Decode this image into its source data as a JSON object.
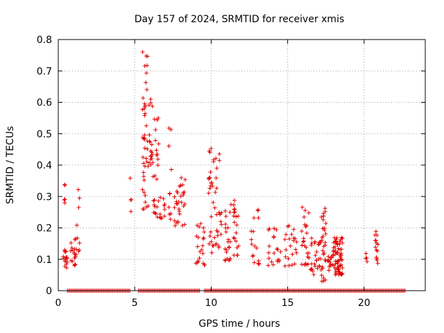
{
  "chart_data": {
    "type": "scatter",
    "title": "Day 157 of 2024, SRMTID for receiver xmis",
    "xlabel": "GPS time / hours",
    "ylabel": "SRMTID / TECUs",
    "xlim": [
      0,
      24
    ],
    "ylim": [
      0,
      0.8
    ],
    "xticks": [
      0,
      5,
      10,
      15,
      20
    ],
    "yticks": [
      0,
      0.1,
      0.2,
      0.3,
      0.4,
      0.5,
      0.6,
      0.7,
      0.8
    ],
    "xtick_labels": [
      "0",
      "5",
      "10",
      "15",
      "20"
    ],
    "ytick_labels": [
      "0",
      "0.1",
      "0.2",
      "0.3",
      "0.4",
      "0.5",
      "0.6",
      "0.7",
      "0.8"
    ],
    "grid": true,
    "marker": "+",
    "series_color": "#e00000",
    "zero_baseline": {
      "x_start": 0.6,
      "x_end": 22.7,
      "step": 0.08,
      "gaps": [
        [
          4.7,
          5.2
        ],
        [
          9.3,
          9.5
        ]
      ]
    },
    "clusters": [
      {
        "x": [
          0.3,
          0.6
        ],
        "y": [
          0.07,
          0.13
        ],
        "n": 16
      },
      {
        "x": [
          0.35,
          0.45
        ],
        "y": [
          0.27,
          0.36
        ],
        "n": 5
      },
      {
        "x": [
          0.8,
          1.2
        ],
        "y": [
          0.08,
          0.18
        ],
        "n": 18
      },
      {
        "x": [
          1.2,
          1.4
        ],
        "y": [
          0.1,
          0.33
        ],
        "n": 8
      },
      {
        "x": [
          4.7,
          4.8
        ],
        "y": [
          0.23,
          0.39
        ],
        "n": 4
      },
      {
        "x": [
          5.5,
          5.9
        ],
        "y": [
          0.26,
          0.77
        ],
        "n": 42
      },
      {
        "x": [
          5.9,
          6.2
        ],
        "y": [
          0.4,
          0.7
        ],
        "n": 18
      },
      {
        "x": [
          6.2,
          6.6
        ],
        "y": [
          0.22,
          0.56
        ],
        "n": 24
      },
      {
        "x": [
          6.6,
          7.0
        ],
        "y": [
          0.23,
          0.3
        ],
        "n": 10
      },
      {
        "x": [
          7.2,
          7.4
        ],
        "y": [
          0.22,
          0.53
        ],
        "n": 10
      },
      {
        "x": [
          7.6,
          8.3
        ],
        "y": [
          0.2,
          0.36
        ],
        "n": 30
      },
      {
        "x": [
          9.0,
          9.6
        ],
        "y": [
          0.08,
          0.24
        ],
        "n": 22
      },
      {
        "x": [
          9.8,
          10.7
        ],
        "y": [
          0.12,
          0.46
        ],
        "n": 48
      },
      {
        "x": [
          10.9,
          11.3
        ],
        "y": [
          0.09,
          0.28
        ],
        "n": 22
      },
      {
        "x": [
          11.4,
          11.8
        ],
        "y": [
          0.11,
          0.3
        ],
        "n": 20
      },
      {
        "x": [
          12.6,
          13.2
        ],
        "y": [
          0.08,
          0.26
        ],
        "n": 18
      },
      {
        "x": [
          13.6,
          14.6
        ],
        "y": [
          0.08,
          0.2
        ],
        "n": 20
      },
      {
        "x": [
          14.8,
          15.6
        ],
        "y": [
          0.07,
          0.21
        ],
        "n": 22
      },
      {
        "x": [
          15.9,
          16.4
        ],
        "y": [
          0.08,
          0.27
        ],
        "n": 24
      },
      {
        "x": [
          16.5,
          17.2
        ],
        "y": [
          0.05,
          0.17
        ],
        "n": 28
      },
      {
        "x": [
          17.2,
          17.5
        ],
        "y": [
          0.03,
          0.28
        ],
        "n": 30
      },
      {
        "x": [
          17.6,
          18.0
        ],
        "y": [
          0.06,
          0.12
        ],
        "n": 14
      },
      {
        "x": [
          18.0,
          18.6
        ],
        "y": [
          0.05,
          0.17
        ],
        "n": 70
      },
      {
        "x": [
          20.1,
          20.2
        ],
        "y": [
          0.09,
          0.12
        ],
        "n": 4
      },
      {
        "x": [
          20.7,
          20.9
        ],
        "y": [
          0.06,
          0.23
        ],
        "n": 14
      }
    ]
  }
}
